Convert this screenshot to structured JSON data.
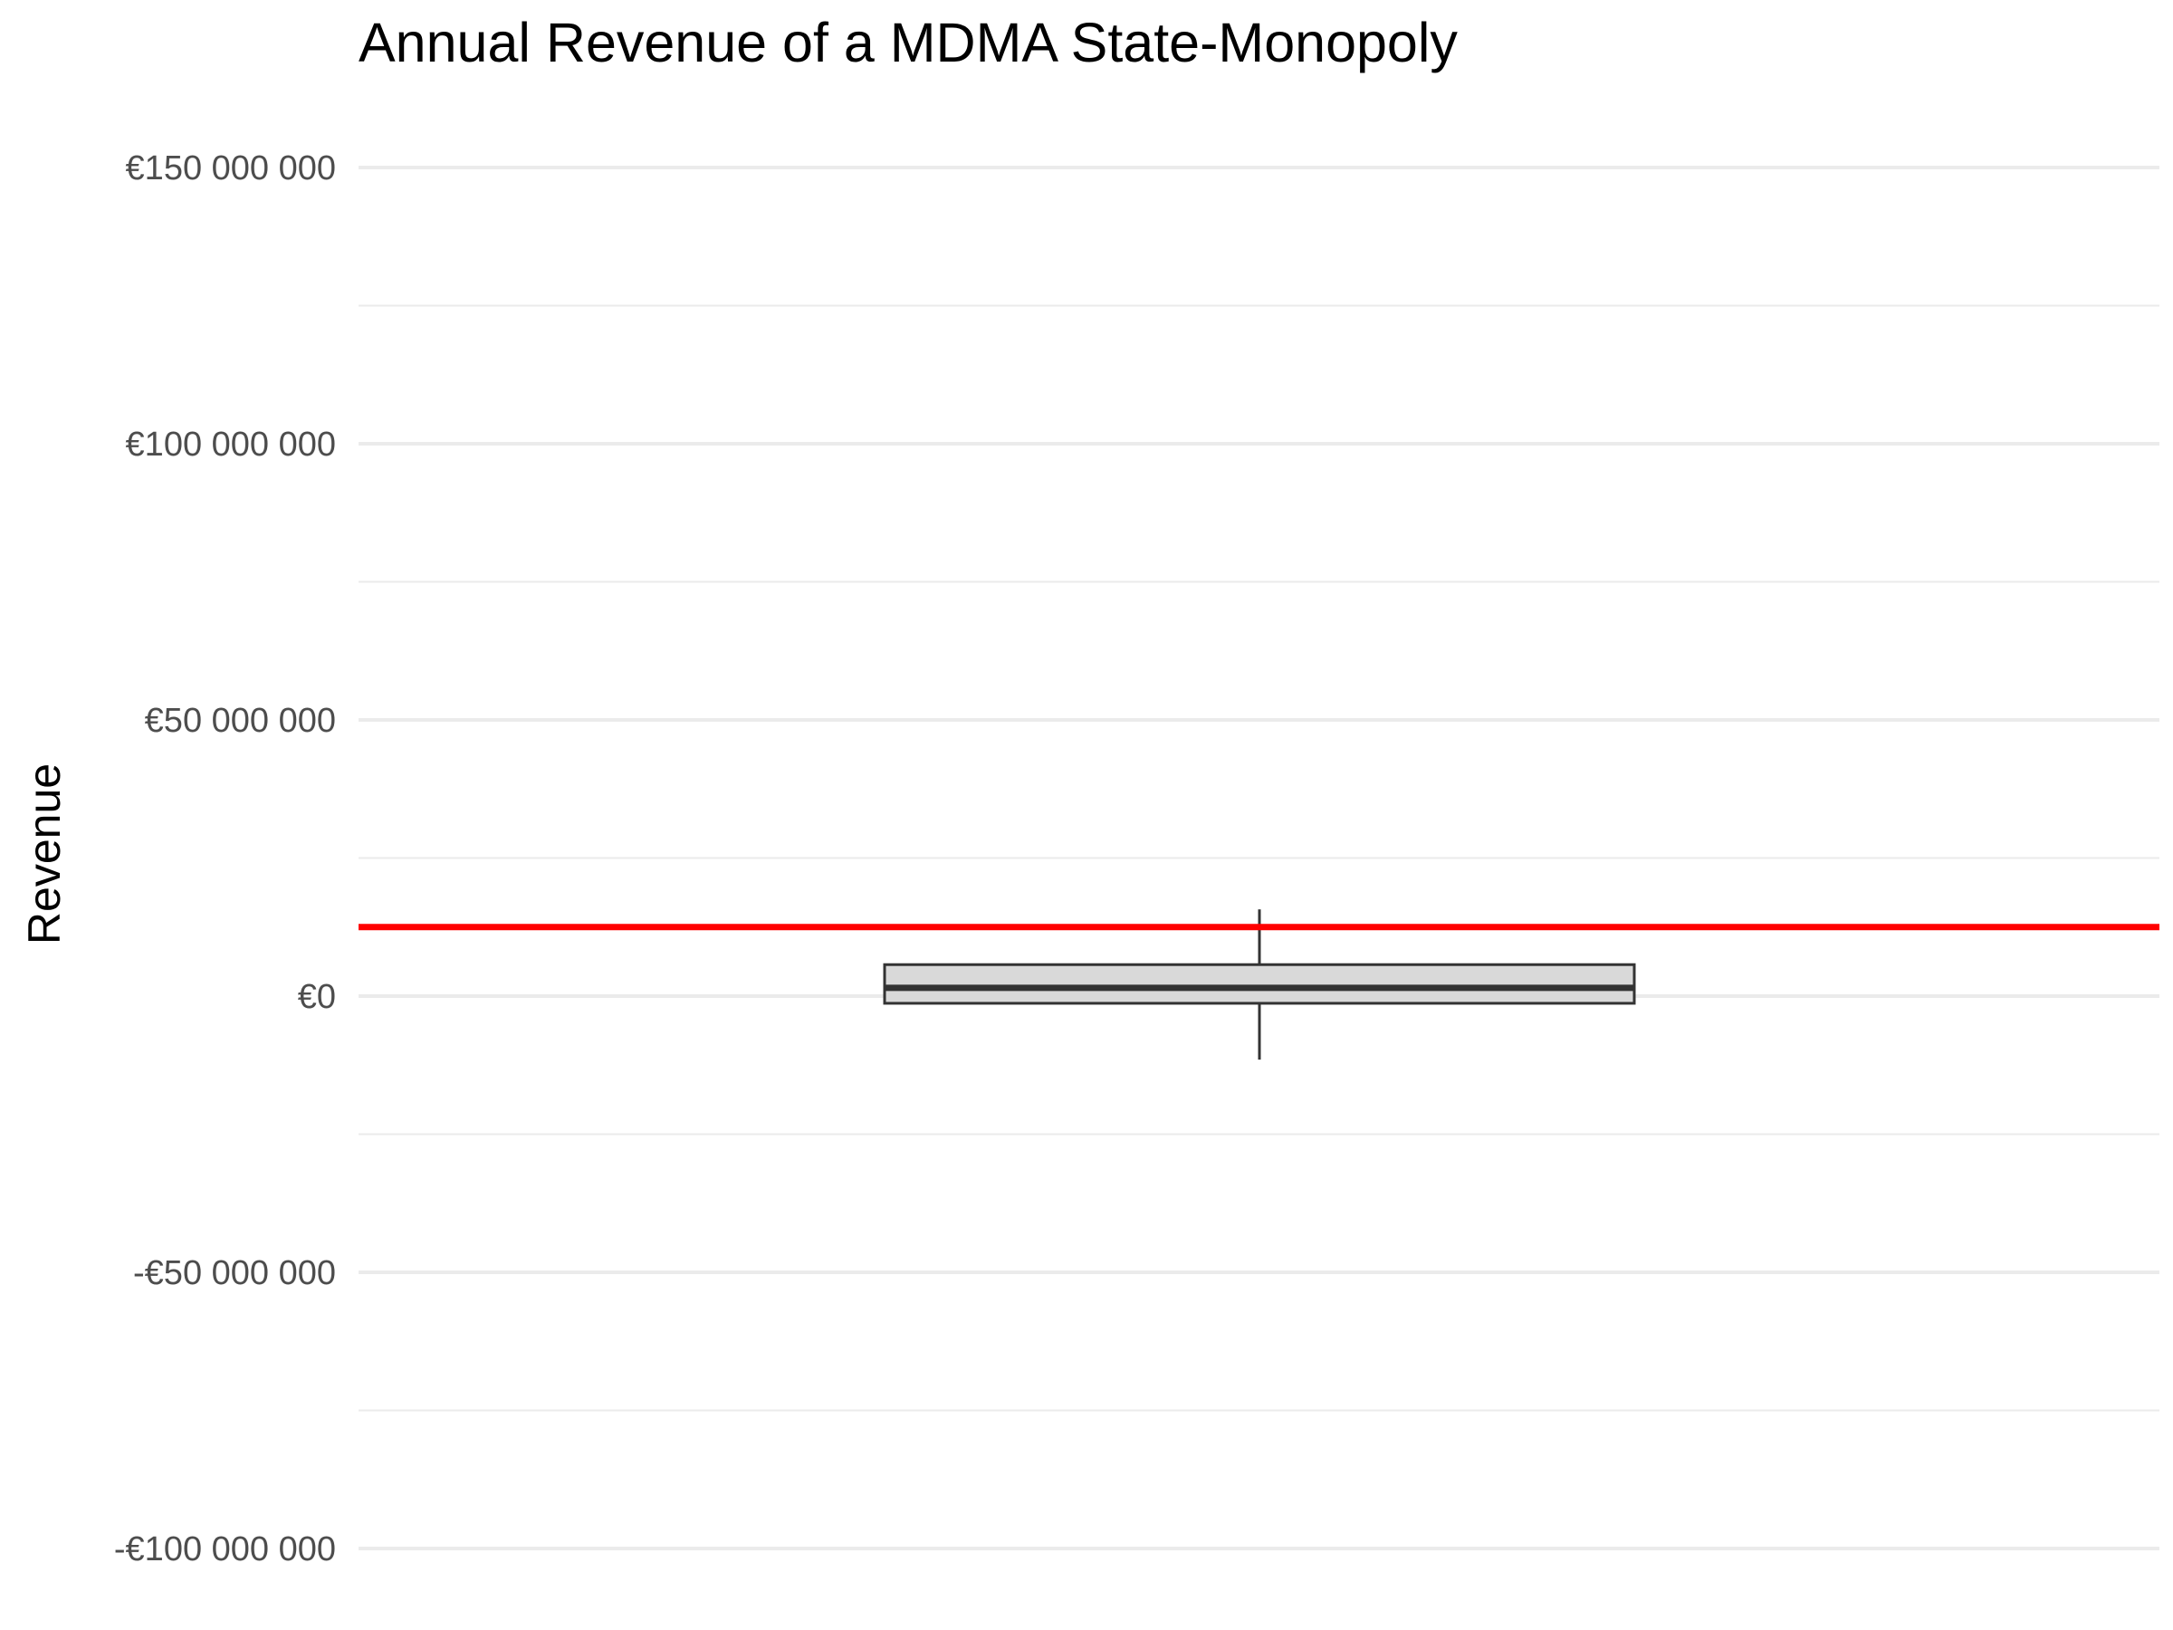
{
  "chart_data": {
    "type": "boxplot",
    "title": "Annual Revenue of a MDMA State-Monopoly",
    "xlabel": "",
    "ylabel": "Revenue",
    "ylim": [
      -105000000,
      160000000
    ],
    "y_ticks": [
      -100000000,
      -50000000,
      0,
      50000000,
      100000000,
      150000000
    ],
    "y_minor_ticks": [
      -75000000,
      -25000000,
      25000000,
      75000000,
      125000000
    ],
    "y_tick_labels": [
      "-€100 000 000",
      "-€50 000 000",
      "€0",
      "€50 000 000",
      "€100 000 000",
      "€150 000 000"
    ],
    "grid": true,
    "box": {
      "whisker_low": -11500000,
      "q1": -1300000,
      "median": 1500000,
      "q3": 5700000,
      "whisker_high": 15700000
    },
    "reference_line": {
      "value": 12500000,
      "color": "#ff0000"
    },
    "colors": {
      "box_fill": "#d9d9d9",
      "box_stroke": "#333333",
      "grid": "#ebebeb"
    }
  }
}
